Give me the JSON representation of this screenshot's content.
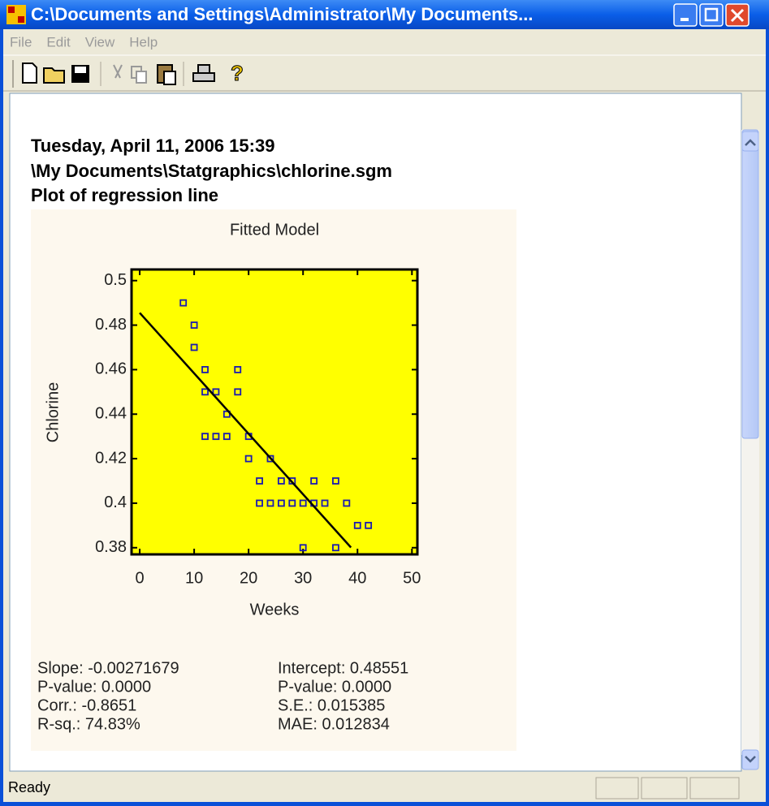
{
  "window": {
    "title": "C:\\Documents and Settings\\Administrator\\My Documents..."
  },
  "menu": [
    "File",
    "Edit",
    "View",
    "Help"
  ],
  "header": {
    "date": "Tuesday, April 11, 2006 15:39",
    "file": "\\My Documents\\Statgraphics\\chlorine.sgm",
    "heading": "Plot of regression line"
  },
  "chart_data": {
    "type": "scatter",
    "title": "Fitted Model",
    "x_label": "Weeks",
    "y_label": "Chlorine",
    "xlim": [
      -1.5,
      51
    ],
    "ylim": [
      0.377,
      0.505
    ],
    "xticks": [
      0,
      10,
      20,
      30,
      40,
      50
    ],
    "yticks": [
      0.38,
      0.4,
      0.42,
      0.44,
      0.46,
      0.48,
      0.5
    ],
    "background": "#ffff00",
    "series": [
      {
        "type": "scatter",
        "color": "#1a1ab0",
        "x": [
          8,
          10,
          10,
          12,
          12,
          14,
          16,
          12,
          14,
          16,
          18,
          18,
          20,
          20,
          22,
          24,
          22,
          24,
          26,
          28,
          30,
          32,
          34,
          26,
          28,
          32,
          36,
          38,
          40,
          42,
          30,
          36
        ],
        "values": [
          0.49,
          0.48,
          0.47,
          0.46,
          0.45,
          0.45,
          0.44,
          0.43,
          0.43,
          0.43,
          0.46,
          0.45,
          0.43,
          0.42,
          0.41,
          0.42,
          0.4,
          0.4,
          0.4,
          0.4,
          0.4,
          0.4,
          0.4,
          0.41,
          0.41,
          0.41,
          0.41,
          0.4,
          0.39,
          0.39,
          0.38,
          0.38
        ]
      },
      {
        "type": "line",
        "color": "#000000",
        "x": [
          0,
          38.8
        ],
        "values": [
          0.4855,
          0.3801
        ]
      }
    ]
  },
  "stats": {
    "left": [
      "Slope: -0.00271679",
      "P-value: 0.0000",
      "Corr.: -0.8651",
      "R-sq.: 74.83%"
    ],
    "right": [
      "Intercept: 0.48551",
      "P-value: 0.0000",
      "S.E.: 0.015385",
      "MAE: 0.012834"
    ]
  },
  "status": "Ready"
}
